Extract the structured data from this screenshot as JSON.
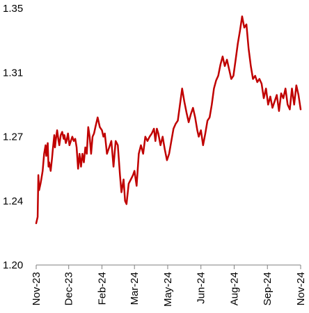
{
  "chart_data": {
    "type": "line",
    "title": "",
    "xlabel": "",
    "ylabel": "",
    "ylim": [
      1.2,
      1.35
    ],
    "y_ticks": [
      "1.20",
      "1.24",
      "1.27",
      "1.31",
      "1.35"
    ],
    "y_tick_values": [
      1.2,
      1.24,
      1.27,
      1.31,
      1.35
    ],
    "x_ticks": [
      "Nov-23",
      "Dec-23",
      "Feb-24",
      "Mar-24",
      "May-24",
      "Jun-24",
      "Aug-24",
      "Sep-24",
      "Nov-24"
    ],
    "x_tick_dates": [
      "2023-11-01",
      "2023-12-16",
      "2024-01-31",
      "2024-03-16",
      "2024-05-01",
      "2024-06-16",
      "2024-08-01",
      "2024-09-16",
      "2024-11-01"
    ],
    "grid": false,
    "line_color": "#c00000",
    "series": [
      {
        "x": [
          "2023-11-01",
          "2023-11-03",
          "2023-11-04",
          "2023-11-05",
          "2023-11-07",
          "2023-11-08",
          "2023-11-10",
          "2023-11-12",
          "2023-11-14",
          "2023-11-15",
          "2023-11-17",
          "2023-11-18",
          "2023-11-19",
          "2023-11-21",
          "2023-11-23",
          "2023-11-24",
          "2023-11-26",
          "2023-11-27",
          "2023-11-28",
          "2023-11-30",
          "2023-12-02",
          "2023-12-03",
          "2023-12-05",
          "2023-12-07",
          "2023-12-09",
          "2023-12-10",
          "2023-12-12",
          "2023-12-13",
          "2023-12-15",
          "2023-12-17",
          "2023-12-19",
          "2023-12-21",
          "2023-12-23",
          "2023-12-25",
          "2023-12-27",
          "2023-12-29",
          "2023-12-31",
          "2024-01-02",
          "2024-01-04",
          "2024-01-06",
          "2024-01-08",
          "2024-01-10",
          "2024-01-12",
          "2024-01-14",
          "2024-01-16",
          "2024-01-18",
          "2024-01-20",
          "2024-01-22",
          "2024-01-25",
          "2024-01-28",
          "2024-01-31",
          "2024-02-02",
          "2024-02-04",
          "2024-02-07",
          "2024-02-10",
          "2024-02-13",
          "2024-02-16",
          "2024-02-19",
          "2024-02-22",
          "2024-02-25",
          "2024-02-27",
          "2024-03-01",
          "2024-03-03",
          "2024-03-05",
          "2024-03-08",
          "2024-03-11",
          "2024-03-14",
          "2024-03-16",
          "2024-03-19",
          "2024-03-22",
          "2024-03-25",
          "2024-03-28",
          "2024-03-31",
          "2024-04-03",
          "2024-04-06",
          "2024-04-09",
          "2024-04-12",
          "2024-04-14",
          "2024-04-16",
          "2024-04-18",
          "2024-04-21",
          "2024-04-24",
          "2024-04-27",
          "2024-04-30",
          "2024-05-03",
          "2024-05-06",
          "2024-05-09",
          "2024-05-12",
          "2024-05-15",
          "2024-05-18",
          "2024-05-21",
          "2024-05-24",
          "2024-05-27",
          "2024-05-30",
          "2024-06-02",
          "2024-06-05",
          "2024-06-08",
          "2024-06-11",
          "2024-06-13",
          "2024-06-16",
          "2024-06-19",
          "2024-06-22",
          "2024-06-25",
          "2024-06-28",
          "2024-07-01",
          "2024-07-04",
          "2024-07-07",
          "2024-07-10",
          "2024-07-13",
          "2024-07-16",
          "2024-07-19",
          "2024-07-22",
          "2024-07-25",
          "2024-07-28",
          "2024-07-31",
          "2024-08-03",
          "2024-08-06",
          "2024-08-09",
          "2024-08-12",
          "2024-08-15",
          "2024-08-18",
          "2024-08-21",
          "2024-08-24",
          "2024-08-27",
          "2024-08-30",
          "2024-09-02",
          "2024-09-05",
          "2024-09-08",
          "2024-09-11",
          "2024-09-14",
          "2024-09-17",
          "2024-09-20",
          "2024-09-23",
          "2024-09-26",
          "2024-09-29",
          "2024-10-02",
          "2024-10-05",
          "2024-10-08",
          "2024-10-11",
          "2024-10-14",
          "2024-10-17",
          "2024-10-20",
          "2024-10-23",
          "2024-10-26",
          "2024-10-29",
          "2024-11-01"
        ],
        "y": [
          1.226,
          1.23,
          1.252,
          1.245,
          1.248,
          1.25,
          1.254,
          1.262,
          1.266,
          1.261,
          1.267,
          1.256,
          1.258,
          1.254,
          1.26,
          1.264,
          1.271,
          1.265,
          1.268,
          1.274,
          1.268,
          1.266,
          1.271,
          1.273,
          1.269,
          1.271,
          1.267,
          1.268,
          1.272,
          1.266,
          1.268,
          1.27,
          1.268,
          1.269,
          1.265,
          1.255,
          1.262,
          1.256,
          1.262,
          1.258,
          1.265,
          1.262,
          1.276,
          1.27,
          1.262,
          1.27,
          1.272,
          1.276,
          1.282,
          1.276,
          1.274,
          1.27,
          1.272,
          1.262,
          1.265,
          1.268,
          1.256,
          1.268,
          1.266,
          1.252,
          1.244,
          1.25,
          1.24,
          1.238,
          1.248,
          1.25,
          1.252,
          1.254,
          1.247,
          1.262,
          1.266,
          1.262,
          1.27,
          1.268,
          1.27,
          1.272,
          1.275,
          1.268,
          1.275,
          1.272,
          1.266,
          1.27,
          1.264,
          1.259,
          1.262,
          1.268,
          1.275,
          1.278,
          1.28,
          1.29,
          1.3,
          1.292,
          1.285,
          1.279,
          1.284,
          1.288,
          1.282,
          1.274,
          1.27,
          1.274,
          1.266,
          1.272,
          1.28,
          1.282,
          1.29,
          1.3,
          1.305,
          1.308,
          1.315,
          1.32,
          1.314,
          1.318,
          1.312,
          1.306,
          1.308,
          1.318,
          1.328,
          1.336,
          1.345,
          1.338,
          1.34,
          1.325,
          1.314,
          1.306,
          1.308,
          1.304,
          1.306,
          1.303,
          1.294,
          1.3,
          1.29,
          1.295,
          1.288,
          1.292,
          1.296,
          1.286,
          1.297,
          1.294,
          1.3,
          1.29,
          1.287,
          1.3,
          1.29,
          1.302,
          1.296,
          1.287
        ]
      }
    ]
  }
}
